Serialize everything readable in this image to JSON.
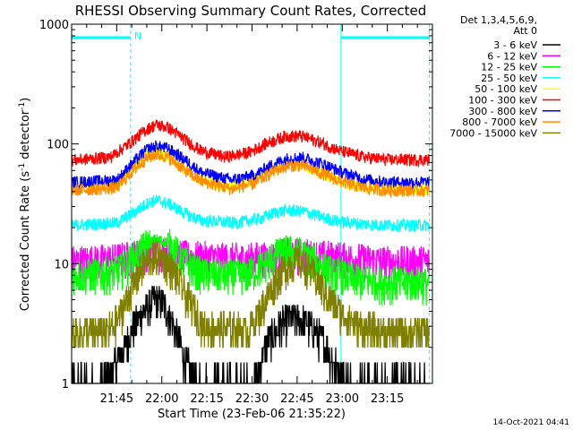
{
  "chart_data": {
    "type": "line",
    "title": "RHESSI Observing Summary Count Rates, Corrected",
    "xlabel": "Start Time (23-Feb-06 21:35:22)",
    "ylabel_main": "Corrected Count Rate (s",
    "ylabel_sup1": "-1",
    "ylabel_mid": " detector",
    "ylabel_sup2": "-1",
    "ylabel_end": ")",
    "yscale": "log",
    "ylim": [
      1,
      1000
    ],
    "xlim_minutes": [
      -15,
      105
    ],
    "x_ticks": [
      {
        "label": "21:45",
        "t": 0
      },
      {
        "label": "22:00",
        "t": 15
      },
      {
        "label": "22:15",
        "t": 30
      },
      {
        "label": "22:30",
        "t": 45
      },
      {
        "label": "22:45",
        "t": 60
      },
      {
        "label": "23:00",
        "t": 75
      },
      {
        "label": "23:15",
        "t": 90
      }
    ],
    "y_ticks": [
      {
        "label": "1",
        "v": 1
      },
      {
        "label": "10",
        "v": 10
      },
      {
        "label": "100",
        "v": 100
      },
      {
        "label": "1000",
        "v": 1000
      }
    ],
    "legend_header_1": "Det 1,3,4,5,6,9,",
    "legend_header_2": "Att 0",
    "night_label": "N",
    "timestamp": "14-Oct-2021 04:41",
    "series": [
      {
        "name": "3 - 6 keV",
        "color": "#000000",
        "profile": [
          [
            -15,
            1
          ],
          [
            -5,
            1
          ],
          [
            0,
            1.5
          ],
          [
            4,
            2.5
          ],
          [
            8,
            3.8
          ],
          [
            12,
            5
          ],
          [
            15,
            4.8
          ],
          [
            18,
            3.5
          ],
          [
            22,
            1.8
          ],
          [
            26,
            1
          ],
          [
            46,
            1
          ],
          [
            50,
            2.2
          ],
          [
            55,
            3.2
          ],
          [
            58,
            3.5
          ],
          [
            62,
            3.3
          ],
          [
            66,
            2.8
          ],
          [
            70,
            2
          ],
          [
            74,
            1.2
          ],
          [
            78,
            1
          ],
          [
            105,
            1
          ]
        ]
      },
      {
        "name": "6 - 12 keV",
        "color": "#ff00ff",
        "profile": [
          [
            -15,
            10.5
          ],
          [
            0,
            11
          ],
          [
            8,
            12
          ],
          [
            12,
            13
          ],
          [
            16,
            12.5
          ],
          [
            24,
            11.5
          ],
          [
            40,
            11
          ],
          [
            52,
            11.5
          ],
          [
            57,
            12.5
          ],
          [
            62,
            12
          ],
          [
            70,
            11.5
          ],
          [
            80,
            11
          ],
          [
            90,
            10.5
          ]
        ]
      },
      {
        "name": "12 - 25 keV",
        "color": "#00ff00",
        "profile": [
          [
            -15,
            8
          ],
          [
            0,
            8.5
          ],
          [
            5,
            11
          ],
          [
            10,
            14.5
          ],
          [
            13,
            16
          ],
          [
            17,
            15
          ],
          [
            22,
            11
          ],
          [
            27,
            8.5
          ],
          [
            42,
            8
          ],
          [
            48,
            9.5
          ],
          [
            53,
            12
          ],
          [
            57,
            13
          ],
          [
            61,
            12.5
          ],
          [
            66,
            10.5
          ],
          [
            72,
            8.5
          ],
          [
            80,
            7.5
          ],
          [
            90,
            7
          ]
        ]
      },
      {
        "name": "25 - 50 keV",
        "color": "#00ffff",
        "profile": [
          [
            -15,
            21
          ],
          [
            0,
            22
          ],
          [
            6,
            27
          ],
          [
            10,
            32
          ],
          [
            13,
            34
          ],
          [
            17,
            32
          ],
          [
            22,
            27
          ],
          [
            28,
            23
          ],
          [
            40,
            22
          ],
          [
            48,
            24
          ],
          [
            53,
            27
          ],
          [
            57,
            28
          ],
          [
            62,
            27.5
          ],
          [
            67,
            25
          ],
          [
            74,
            22.5
          ],
          [
            82,
            21.5
          ],
          [
            90,
            21
          ]
        ]
      },
      {
        "name": "50 - 100 keV",
        "color": "#ffff00",
        "profile": [
          [
            -15,
            44
          ],
          [
            0,
            46
          ],
          [
            6,
            65
          ],
          [
            10,
            80
          ],
          [
            13,
            85
          ],
          [
            17,
            80
          ],
          [
            22,
            64
          ],
          [
            28,
            50
          ],
          [
            38,
            44
          ],
          [
            46,
            50
          ],
          [
            52,
            62
          ],
          [
            57,
            68
          ],
          [
            62,
            67
          ],
          [
            68,
            58
          ],
          [
            75,
            48
          ],
          [
            82,
            44
          ],
          [
            90,
            42
          ]
        ]
      },
      {
        "name": "100 - 300 keV",
        "color": "#ff0000",
        "profile": [
          [
            -15,
            73
          ],
          [
            -2,
            78
          ],
          [
            5,
            105
          ],
          [
            10,
            133
          ],
          [
            13,
            145
          ],
          [
            17,
            138
          ],
          [
            22,
            112
          ],
          [
            28,
            88
          ],
          [
            36,
            78
          ],
          [
            44,
            85
          ],
          [
            50,
            102
          ],
          [
            56,
            116
          ],
          [
            61,
            117
          ],
          [
            67,
            105
          ],
          [
            74,
            88
          ],
          [
            82,
            78
          ],
          [
            90,
            74
          ]
        ]
      },
      {
        "name": "300 - 800 keV",
        "color": "#0000ff",
        "profile": [
          [
            -15,
            48
          ],
          [
            0,
            50
          ],
          [
            6,
            72
          ],
          [
            10,
            90
          ],
          [
            13,
            96
          ],
          [
            17,
            92
          ],
          [
            22,
            76
          ],
          [
            28,
            58
          ],
          [
            38,
            50
          ],
          [
            46,
            55
          ],
          [
            52,
            68
          ],
          [
            57,
            76
          ],
          [
            62,
            77
          ],
          [
            68,
            69
          ],
          [
            75,
            58
          ],
          [
            82,
            51
          ],
          [
            90,
            48
          ]
        ]
      },
      {
        "name": "800 - 7000 keV",
        "color": "#ff8c00",
        "profile": [
          [
            -15,
            41
          ],
          [
            0,
            43
          ],
          [
            6,
            62
          ],
          [
            10,
            76
          ],
          [
            13,
            82
          ],
          [
            17,
            78
          ],
          [
            22,
            62
          ],
          [
            28,
            49
          ],
          [
            38,
            42
          ],
          [
            46,
            47
          ],
          [
            52,
            59
          ],
          [
            57,
            66
          ],
          [
            62,
            66
          ],
          [
            68,
            57
          ],
          [
            75,
            48
          ],
          [
            82,
            43
          ],
          [
            90,
            41
          ]
        ]
      },
      {
        "name": "7000 - 15000 keV",
        "color": "#808000",
        "profile": [
          [
            -15,
            2.6
          ],
          [
            -3,
            2.8
          ],
          [
            0,
            3.3
          ],
          [
            4,
            5.5
          ],
          [
            8,
            9
          ],
          [
            12,
            12
          ],
          [
            15,
            11.5
          ],
          [
            19,
            8.5
          ],
          [
            24,
            5
          ],
          [
            29,
            3
          ],
          [
            44,
            2.8
          ],
          [
            48,
            4.2
          ],
          [
            53,
            7.5
          ],
          [
            57,
            10
          ],
          [
            61,
            10.5
          ],
          [
            65,
            8.5
          ],
          [
            70,
            5.5
          ],
          [
            75,
            3.8
          ],
          [
            82,
            2.9
          ],
          [
            90,
            2.7
          ]
        ]
      }
    ],
    "night_intervals_minutes": [
      [
        -15,
        4.6
      ],
      [
        74.6,
        104
      ]
    ],
    "legend_position": "right"
  }
}
